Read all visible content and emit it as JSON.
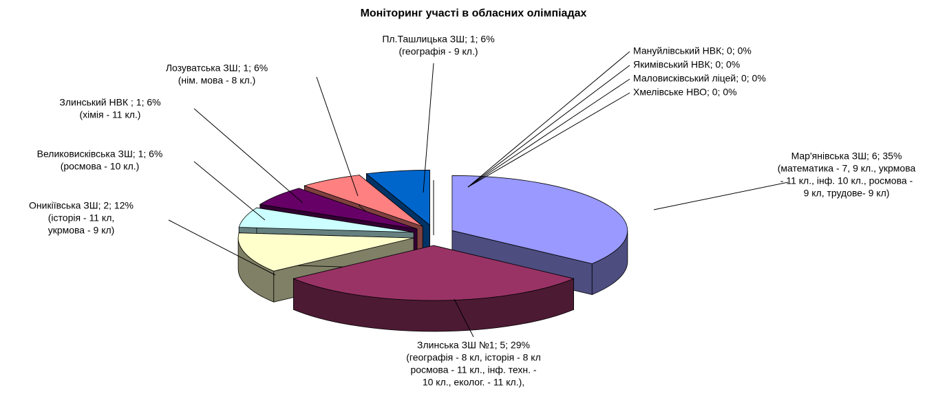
{
  "chart_data": {
    "type": "pie",
    "title": "Моніторинг участі в обласних олімпіадах",
    "labels": [
      "Мар'янівська ЗШ; 6; 35%",
      "Злинська ЗШ №1; 5; 29%",
      "Оникіївська ЗШ; 2; 12%",
      "Великовисківська ЗШ; 1; 6%",
      "Злинський НВК  ; 1; 6%",
      "Лозуватська ЗШ; 1; 6%",
      "Пл.Ташлицька ЗШ; 1; 6%",
      "Мануйлівський НВК; 0; 0%",
      "Якимівський НВК; 0; 0%",
      "Маловисківський ліцей; 0; 0%",
      "Хмелівське НВО; 0; 0%"
    ],
    "values": [
      6,
      5,
      2,
      1,
      1,
      1,
      1,
      0,
      0,
      0,
      0
    ],
    "notes": [
      [
        "(математика - 7, 9 кл., укрмова",
        "- 11 кл., інф. 10 кл., росмова -",
        "9 кл, трудове- 9 кл)"
      ],
      [
        "(географія - 8 кл, історія - 8 кл",
        "росмова - 11 кл., інф. техн. -",
        "10 кл., еколог. - 11 кл.),"
      ],
      [
        "(історія - 11 кл,",
        "укрмова - 9 кл)"
      ],
      [
        "(росмова - 10 кл.)"
      ],
      [
        "(хімія - 11 кл.)"
      ],
      [
        "(нім. мова - 8 кл.)"
      ],
      [
        "(географія - 9 кл.)"
      ],
      [],
      [],
      [],
      []
    ],
    "colors": [
      "#9999ff",
      "#993366",
      "#ffffcc",
      "#ccffff",
      "#660066",
      "#ff8080",
      "#0066cc",
      "#ffffff",
      "#ffffff",
      "#ffffff",
      "#ffffff"
    ]
  }
}
